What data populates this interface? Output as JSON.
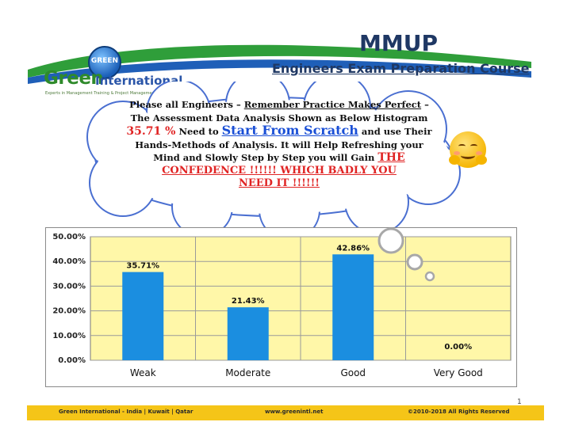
{
  "header": {
    "title": "MMUP",
    "subtitle": "Engineers Exam Preparation Course",
    "logo": {
      "globe_text": "GREEN",
      "name_part1": "Green",
      "name_part2": "International",
      "tagline": "Experts in Management Training & Project Management Consulting"
    }
  },
  "message": {
    "line1_a": "Please all Engineers – ",
    "line1_b": "Remember Practice Makes Perfect",
    "line1_c": " –",
    "line2": "The Assessment Data Analysis  Shown as Below Histogram",
    "pct": "35.71 %",
    "need_to": " Need to ",
    "scratch": "Start From Scratch",
    "use_their": " and use Their",
    "line4": "Hands-Methods of Analysis. It will Help Refreshing  your",
    "line5": "Mind and Slowly Step by Step you will Gain ",
    "the": "THE",
    "line6": "CONFEDENCE !!!!!! WHICH  BADLY YOU",
    "line7": "NEED IT !!!!!!"
  },
  "chart_data": {
    "type": "bar",
    "categories": [
      "Weak",
      "Moderate",
      "Good",
      "Very Good"
    ],
    "values": [
      35.71,
      21.43,
      42.86,
      0.0
    ],
    "data_labels": [
      "35.71%",
      "21.43%",
      "42.86%",
      "0.00%"
    ],
    "y_ticks": [
      "0.00%",
      "10.00%",
      "20.00%",
      "30.00%",
      "40.00%",
      "50.00%"
    ],
    "ylim": [
      0,
      50
    ],
    "grid": true,
    "colors": {
      "bar": "#1b8ee0",
      "plot_bg": "#fff7a8",
      "grid": "#9a9a9a"
    }
  },
  "footer": {
    "left": "Green International - India | Kuwait | Qatar",
    "center": "www.greenintl.net",
    "right": "©2010-2018 All Rights Reserved",
    "page": "1"
  }
}
